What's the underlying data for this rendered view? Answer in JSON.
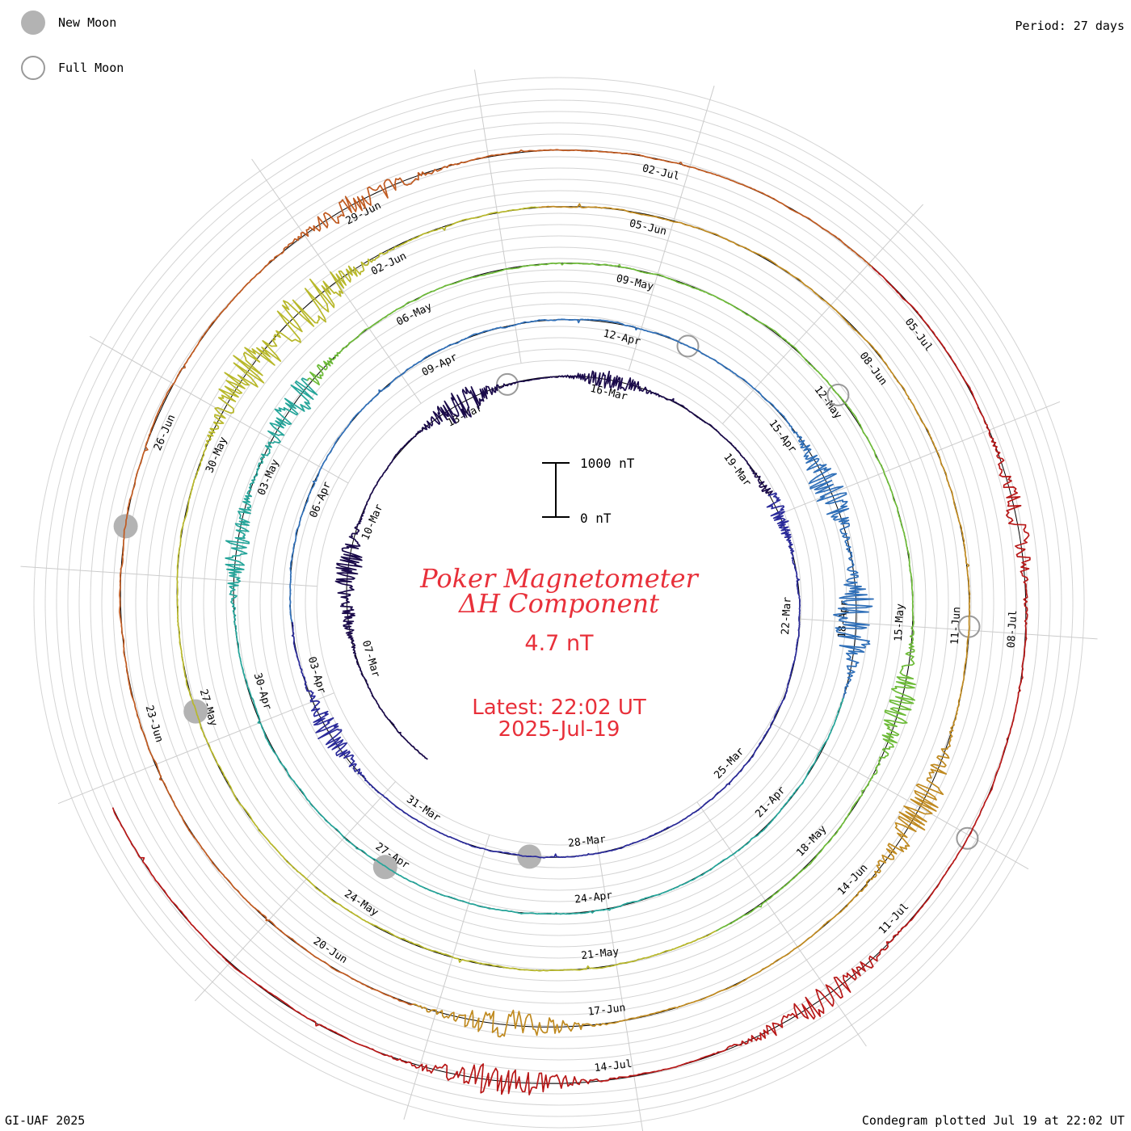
{
  "legend": {
    "new_moon_label": "New Moon",
    "full_moon_label": "Full Moon",
    "new_moon_color": "#b3b3b3",
    "full_moon_color": "#9a9a9a"
  },
  "period_label": "Period: 27 days",
  "footer_left": "GI-UAF 2025",
  "footer_right": "Condegram plotted Jul 19 at 22:02 UT",
  "center": {
    "title_line1": "Poker Magnetometer",
    "title_line2": "ΔH Component",
    "current_value": "4.7 nT",
    "latest_label": "Latest: 22:02 UT",
    "latest_date": "2025-Jul-19",
    "text_color": "#e8303a"
  },
  "scale_bar": {
    "top_label": "1000 nT",
    "bottom_label": "0 nT",
    "top_value_nT": 1000,
    "bottom_value_nT": 0
  },
  "chart_data": {
    "type": "line",
    "layout": "spiral condegram",
    "period_days": 27,
    "start_date": "2025-03-05",
    "end_date": "2025-07-19",
    "unit": "nT",
    "date_labels": [
      "07-Mar",
      "10-Mar",
      "13-Mar",
      "16-Mar",
      "19-Mar",
      "22-Mar",
      "25-Mar",
      "28-Mar",
      "31-Mar",
      "03-Apr",
      "06-Apr",
      "09-Apr",
      "12-Apr",
      "15-Apr",
      "18-Apr",
      "21-Apr",
      "24-Apr",
      "27-Apr",
      "30-Apr",
      "03-May",
      "06-May",
      "09-May",
      "12-May",
      "15-May",
      "18-May",
      "21-May",
      "24-May",
      "27-May",
      "30-May",
      "02-Jun",
      "05-Jun",
      "08-Jun",
      "11-Jun",
      "14-Jun",
      "17-Jun",
      "20-Jun",
      "23-Jun",
      "26-Jun",
      "29-Jun",
      "02-Jul",
      "05-Jul",
      "08-Jul",
      "11-Jul",
      "14-Jul"
    ],
    "new_moons": [
      "2025-03-29",
      "2025-04-27",
      "2025-05-27",
      "2025-06-25"
    ],
    "full_moons": [
      "2025-03-14",
      "2025-04-13",
      "2025-05-12",
      "2025-06-11",
      "2025-07-10"
    ],
    "series_colors": [
      "#1a0a4a",
      "#2a2a9a",
      "#2f6fb8",
      "#25a59a",
      "#6dbb38",
      "#b8b82a",
      "#c08a20",
      "#c05a20",
      "#b81818"
    ],
    "peaks": [
      {
        "date": "2025-03-08",
        "value": 120
      },
      {
        "date": "2025-03-09",
        "value": 260
      },
      {
        "date": "2025-03-13",
        "value": 310
      },
      {
        "date": "2025-03-16",
        "value": 180
      },
      {
        "date": "2025-03-20",
        "value": 150
      },
      {
        "date": "2025-04-02",
        "value": 240
      },
      {
        "date": "2025-04-16",
        "value": 330
      },
      {
        "date": "2025-04-18",
        "value": 420
      },
      {
        "date": "2025-05-02",
        "value": 220
      },
      {
        "date": "2025-05-04",
        "value": 300
      },
      {
        "date": "2025-05-16",
        "value": 250
      },
      {
        "date": "2025-05-31",
        "value": 380
      },
      {
        "date": "2025-06-01",
        "value": 450
      },
      {
        "date": "2025-06-13",
        "value": 330
      },
      {
        "date": "2025-06-18",
        "value": 260
      },
      {
        "date": "2025-06-29",
        "value": 210
      },
      {
        "date": "2025-07-07",
        "value": 180
      },
      {
        "date": "2025-07-12",
        "value": 260
      },
      {
        "date": "2025-07-15",
        "value": 300
      }
    ]
  }
}
